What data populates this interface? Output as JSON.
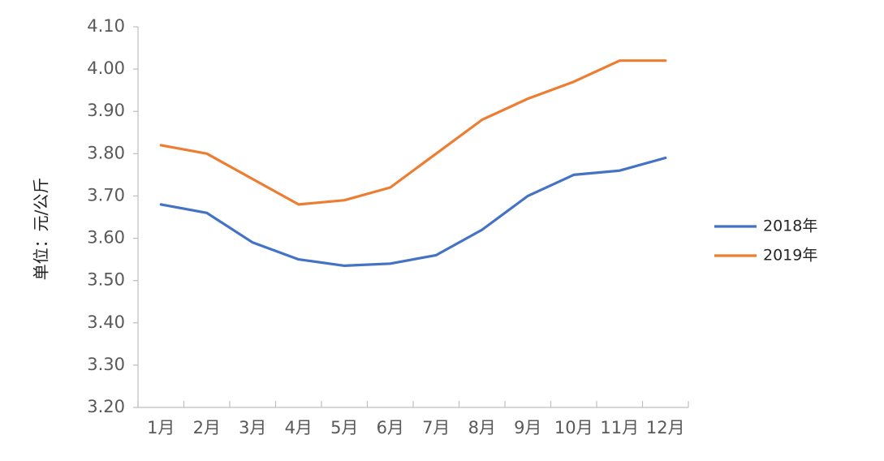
{
  "chart_data": {
    "type": "line",
    "ylabel": "单位：元/公斤",
    "ylim": [
      3.2,
      4.1
    ],
    "yticks": [
      "3.20",
      "3.30",
      "3.40",
      "3.50",
      "3.60",
      "3.70",
      "3.80",
      "3.90",
      "4.00",
      "4.10"
    ],
    "categories": [
      "1月",
      "2月",
      "3月",
      "4月",
      "5月",
      "6月",
      "7月",
      "8月",
      "9月",
      "10月",
      "11月",
      "12月"
    ],
    "series": [
      {
        "name": "2018年",
        "color": "#4472C4",
        "values": [
          3.68,
          3.66,
          3.59,
          3.55,
          3.535,
          3.54,
          3.56,
          3.62,
          3.7,
          3.75,
          3.76,
          3.79
        ]
      },
      {
        "name": "2019年",
        "color": "#ED7D31",
        "values": [
          3.82,
          3.8,
          3.74,
          3.68,
          3.69,
          3.72,
          3.8,
          3.88,
          3.93,
          3.97,
          4.02,
          4.02
        ]
      }
    ],
    "grid": false,
    "legend_position": "right"
  }
}
